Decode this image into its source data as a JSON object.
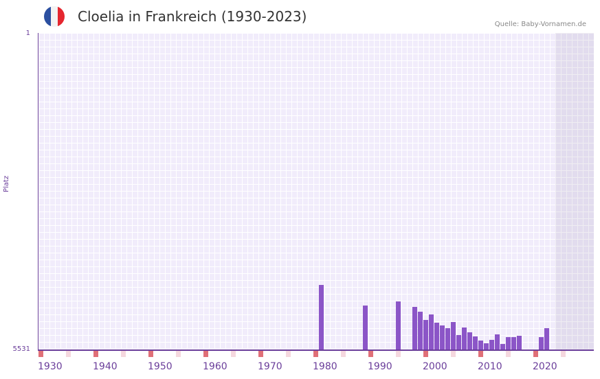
{
  "header": {
    "title": "Cloelia in Frankreich (1930-2023)",
    "source": "Quelle: Baby-Vornamen.de",
    "flag_colors": [
      "#2b4fa0",
      "#f3f3f3",
      "#e5262f"
    ]
  },
  "axis": {
    "ylabel": "Platz",
    "ytick_top": "1",
    "ytick_bottom": "5531",
    "xticks": [
      "1930",
      "1940",
      "1950",
      "1960",
      "1970",
      "1980",
      "1990",
      "2000",
      "2010",
      "2020"
    ]
  },
  "colors": {
    "bar": "#8b55c7",
    "axis": "#6a3d9a",
    "decade_marker": "#e07078",
    "half_decade_marker": "#f5d8de",
    "grid_bg": "#f1ecfb"
  },
  "chart_data": {
    "type": "bar",
    "title": "Cloelia in Frankreich (1930-2023)",
    "xlabel": "",
    "ylabel": "Platz",
    "ylim": [
      5531,
      1
    ],
    "y_inverted": true,
    "x_range": [
      1930,
      2028
    ],
    "shaded_future_from": 2024,
    "categories": [
      1981,
      1989,
      1995,
      1998,
      1999,
      2000,
      2001,
      2002,
      2003,
      2004,
      2005,
      2006,
      2007,
      2008,
      2009,
      2010,
      2011,
      2012,
      2013,
      2014,
      2015,
      2016,
      2017,
      2021,
      2022
    ],
    "values": [
      4394,
      4753,
      4681,
      4777,
      4861,
      5004,
      4909,
      5052,
      5100,
      5148,
      5040,
      5268,
      5136,
      5220,
      5292,
      5363,
      5411,
      5351,
      5256,
      5423,
      5304,
      5304,
      5280,
      5304,
      5148
    ],
    "legend": []
  }
}
